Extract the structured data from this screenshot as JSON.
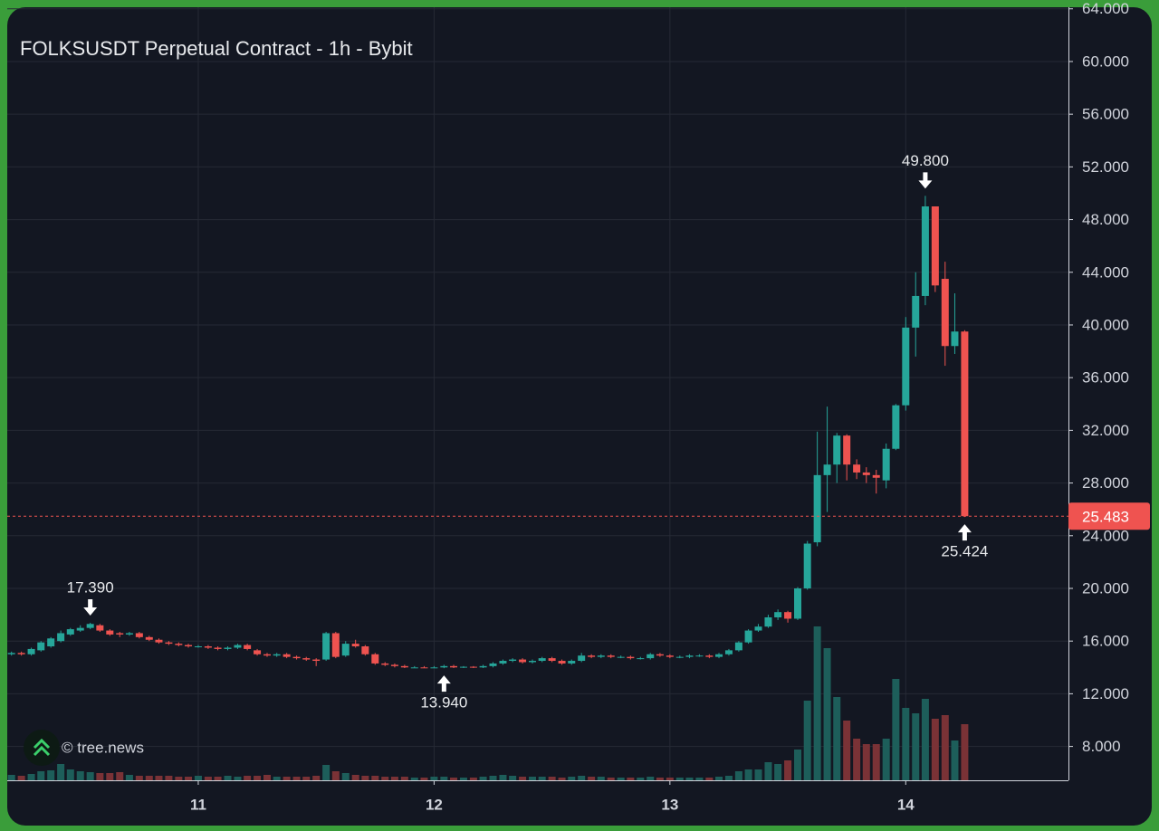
{
  "chart_data": {
    "type": "candlestick",
    "title": "FOLKSUSDT Perpetual Contract - 1h - Bybit",
    "watermark": "© tree.news",
    "up_color": "#26a69a",
    "down_color": "#ef5350",
    "volume_up_color": "#1d5e5a",
    "volume_down_color": "#7a3236",
    "grid": true,
    "xlim": [
      10.19,
      14.69
    ],
    "xticks": [
      11,
      12,
      13,
      14
    ],
    "ylim": [
      5.43,
      64.12
    ],
    "yticks": [
      {
        "value": 8,
        "label": "8.000"
      },
      {
        "value": 12,
        "label": "12.000"
      },
      {
        "value": 16,
        "label": "16.000"
      },
      {
        "value": 20,
        "label": "20.000"
      },
      {
        "value": 24,
        "label": "24.000"
      },
      {
        "value": 28,
        "label": "28.000"
      },
      {
        "value": 32,
        "label": "32.000"
      },
      {
        "value": 36,
        "label": "36.000"
      },
      {
        "value": 40,
        "label": "40.000"
      },
      {
        "value": 44,
        "label": "44.000"
      },
      {
        "value": 48,
        "label": "48.000"
      },
      {
        "value": 52,
        "label": "52.000"
      },
      {
        "value": 56,
        "label": "56.000"
      },
      {
        "value": 60,
        "label": "60.000"
      },
      {
        "value": 64,
        "label": "64.000"
      }
    ],
    "x": [
      10.208,
      10.25,
      10.292,
      10.333,
      10.375,
      10.417,
      10.458,
      10.5,
      10.542,
      10.583,
      10.625,
      10.667,
      10.708,
      10.75,
      10.792,
      10.833,
      10.875,
      10.917,
      10.958,
      11,
      11.042,
      11.083,
      11.125,
      11.167,
      11.208,
      11.25,
      11.292,
      11.333,
      11.375,
      11.417,
      11.458,
      11.5,
      11.542,
      11.583,
      11.625,
      11.667,
      11.708,
      11.75,
      11.792,
      11.833,
      11.875,
      11.917,
      11.958,
      12,
      12.042,
      12.083,
      12.125,
      12.167,
      12.208,
      12.25,
      12.292,
      12.333,
      12.375,
      12.417,
      12.458,
      12.5,
      12.542,
      12.583,
      12.625,
      12.667,
      12.708,
      12.75,
      12.792,
      12.833,
      12.875,
      12.917,
      12.958,
      13,
      13.042,
      13.083,
      13.125,
      13.167,
      13.208,
      13.25,
      13.292,
      13.333,
      13.375,
      13.417,
      13.458,
      13.5,
      13.542,
      13.583,
      13.625,
      13.667,
      13.708,
      13.75,
      13.792,
      13.833,
      13.875,
      13.917,
      13.958,
      14,
      14.042,
      14.083,
      14.125,
      14.167,
      14.208,
      14.25
    ],
    "open": [
      15.0,
      15.1,
      15.0,
      15.3,
      15.6,
      16.0,
      16.5,
      16.8,
      17.0,
      17.2,
      16.8,
      16.6,
      16.5,
      16.6,
      16.3,
      16.1,
      15.9,
      15.8,
      15.7,
      15.6,
      15.6,
      15.5,
      15.4,
      15.5,
      15.7,
      15.3,
      15.0,
      14.9,
      15.0,
      14.8,
      14.7,
      14.6,
      14.6,
      16.6,
      14.9,
      15.8,
      15.6,
      15.0,
      14.3,
      14.2,
      14.1,
      14.0,
      14.0,
      13.95,
      14.0,
      14.1,
      14.0,
      14.05,
      14.0,
      14.1,
      14.3,
      14.5,
      14.6,
      14.4,
      14.5,
      14.7,
      14.5,
      14.3,
      14.5,
      14.9,
      14.8,
      14.9,
      14.8,
      14.8,
      14.7,
      14.7,
      15.0,
      14.9,
      14.8,
      14.8,
      14.9,
      14.9,
      14.8,
      15.0,
      15.3,
      15.9,
      16.8,
      17.1,
      17.8,
      18.2,
      17.7,
      20.0,
      23.5,
      28.6,
      29.4,
      31.6,
      29.4,
      28.8,
      28.6,
      28.2,
      30.6,
      33.9,
      39.8,
      42.2,
      49.0,
      43.5,
      38.4,
      39.5
    ],
    "high": [
      15.2,
      15.2,
      15.5,
      16.0,
      16.3,
      16.8,
      17.0,
      17.2,
      17.39,
      17.3,
      16.9,
      16.7,
      16.7,
      16.7,
      16.4,
      16.2,
      16.0,
      15.9,
      15.8,
      15.7,
      15.7,
      15.6,
      15.6,
      15.8,
      15.8,
      15.4,
      15.1,
      15.1,
      15.1,
      14.9,
      14.8,
      14.7,
      16.7,
      16.7,
      16.0,
      16.1,
      15.7,
      15.1,
      14.4,
      14.3,
      14.2,
      14.1,
      14.1,
      14.1,
      14.2,
      14.2,
      14.1,
      14.1,
      14.2,
      14.4,
      14.6,
      14.7,
      14.7,
      14.6,
      14.8,
      14.8,
      14.6,
      14.6,
      15.1,
      15.0,
      15.0,
      15.0,
      14.9,
      14.9,
      14.8,
      15.1,
      15.1,
      15.0,
      14.9,
      15.0,
      15.0,
      15.0,
      15.1,
      15.4,
      16.0,
      16.9,
      17.3,
      18.0,
      18.4,
      18.3,
      20.1,
      23.6,
      31.9,
      33.8,
      31.8,
      31.7,
      29.8,
      29.2,
      29.0,
      31.0,
      34.0,
      40.6,
      44.0,
      49.8,
      49.0,
      44.8,
      42.4,
      39.6
    ],
    "low": [
      14.9,
      14.9,
      14.9,
      15.2,
      15.5,
      15.9,
      16.4,
      16.7,
      16.9,
      16.7,
      16.4,
      16.3,
      16.4,
      16.2,
      16.0,
      15.8,
      15.7,
      15.6,
      15.5,
      15.5,
      15.4,
      15.3,
      15.3,
      15.4,
      15.3,
      14.9,
      14.8,
      14.8,
      14.7,
      14.6,
      14.5,
      14.1,
      14.5,
      14.7,
      14.8,
      15.5,
      14.9,
      14.2,
      14.1,
      14.0,
      13.95,
      13.95,
      13.95,
      13.95,
      13.94,
      13.95,
      13.95,
      13.95,
      13.95,
      14.0,
      14.2,
      14.4,
      14.3,
      14.3,
      14.4,
      14.4,
      14.2,
      14.2,
      14.4,
      14.7,
      14.7,
      14.7,
      14.7,
      14.6,
      14.6,
      14.6,
      14.8,
      14.7,
      14.7,
      14.7,
      14.8,
      14.7,
      14.7,
      14.9,
      15.2,
      15.8,
      16.7,
      17.0,
      17.6,
      17.4,
      17.6,
      19.9,
      23.2,
      25.8,
      28.0,
      28.2,
      28.3,
      28.0,
      27.2,
      27.6,
      30.5,
      33.5,
      37.6,
      41.5,
      42.5,
      36.9,
      37.8,
      25.424
    ],
    "close": [
      15.1,
      15.0,
      15.4,
      15.9,
      16.2,
      16.6,
      16.9,
      17.0,
      17.3,
      16.8,
      16.5,
      16.5,
      16.6,
      16.3,
      16.1,
      15.9,
      15.8,
      15.7,
      15.6,
      15.6,
      15.5,
      15.4,
      15.5,
      15.7,
      15.4,
      15.0,
      14.9,
      15.0,
      14.8,
      14.7,
      14.6,
      14.5,
      16.6,
      14.8,
      15.8,
      15.6,
      15.0,
      14.3,
      14.2,
      14.1,
      14.0,
      14.0,
      13.95,
      14.0,
      14.1,
      14.0,
      14.05,
      14.0,
      14.1,
      14.3,
      14.5,
      14.6,
      14.4,
      14.5,
      14.7,
      14.5,
      14.3,
      14.5,
      14.9,
      14.8,
      14.9,
      14.8,
      14.8,
      14.7,
      14.7,
      15.0,
      14.9,
      14.8,
      14.8,
      14.9,
      14.9,
      14.8,
      15.0,
      15.3,
      15.9,
      16.8,
      17.1,
      17.8,
      18.2,
      17.7,
      20.0,
      23.4,
      28.6,
      29.4,
      31.6,
      29.4,
      28.8,
      28.6,
      28.4,
      30.6,
      33.9,
      39.8,
      42.2,
      49.0,
      43.0,
      38.4,
      39.5,
      25.483
    ],
    "volume": [
      6,
      5,
      7,
      10,
      11,
      18,
      12,
      10,
      9,
      8,
      8,
      9,
      6,
      5,
      5,
      5,
      5,
      4,
      4,
      5,
      4,
      4,
      5,
      4,
      5,
      5,
      6,
      4,
      4,
      4,
      4,
      5,
      17,
      10,
      8,
      6,
      5,
      5,
      4,
      4,
      4,
      3,
      3,
      4,
      4,
      3,
      3,
      3,
      4,
      5,
      6,
      5,
      4,
      4,
      4,
      4,
      3,
      4,
      5,
      4,
      4,
      3,
      3,
      3,
      3,
      4,
      3,
      3,
      3,
      3,
      3,
      3,
      4,
      5,
      10,
      12,
      12,
      20,
      18,
      22,
      34,
      88,
      170,
      146,
      92,
      66,
      46,
      40,
      40,
      46,
      112,
      80,
      74,
      90,
      68,
      72,
      44,
      62
    ],
    "annotations": [
      {
        "value": 17.39,
        "label": "17.390"
      },
      {
        "value": 13.94,
        "label": "13.940"
      },
      {
        "value": 49.8,
        "label": "49.800"
      },
      {
        "value": 25.424,
        "label": "25.424"
      }
    ],
    "last_price": {
      "value": 25.483,
      "label": "25.483"
    }
  }
}
